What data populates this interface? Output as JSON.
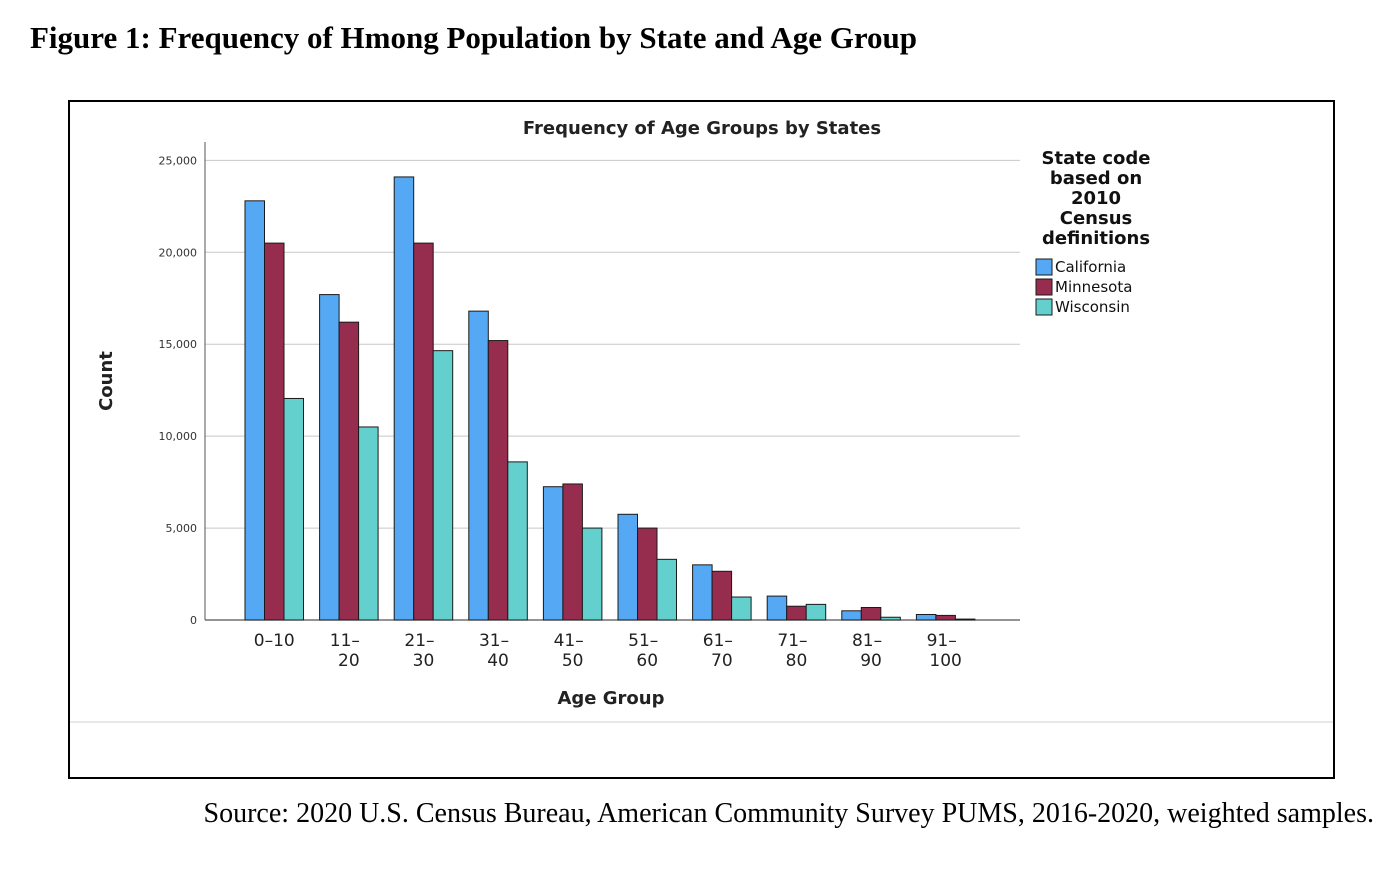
{
  "figure_title": "Figure 1: Frequency of Hmong Population by State and Age Group",
  "source_text": "Source: 2020 U.S. Census Bureau, American Community Survey PUMS, 2016-2020, weighted samples.",
  "chart_data": {
    "type": "bar",
    "title": "Frequency of Age Groups by States",
    "xlabel": "Age Group",
    "ylabel": "Count",
    "ylim": [
      0,
      26000
    ],
    "yticks": [
      0,
      5000,
      10000,
      15000,
      20000,
      25000
    ],
    "ytick_labels": [
      "0",
      "5,000",
      "10,000",
      "15,000",
      "20,000",
      "25,000"
    ],
    "grid": true,
    "categories": [
      "0–10",
      "11–20",
      "21–30",
      "31–40",
      "41–50",
      "51–60",
      "61–70",
      "71–80",
      "81–90",
      "91–100"
    ],
    "category_lines": [
      [
        "0–10"
      ],
      [
        "11–",
        "20"
      ],
      [
        "21–",
        "30"
      ],
      [
        "31–",
        "40"
      ],
      [
        "41–",
        "50"
      ],
      [
        "51–",
        "60"
      ],
      [
        "61–",
        "70"
      ],
      [
        "71–",
        "80"
      ],
      [
        "81–",
        "90"
      ],
      [
        "91–",
        "100"
      ]
    ],
    "legend_title_lines": [
      "State code",
      "based on",
      "2010",
      "Census",
      "definitions"
    ],
    "legend_position": "right",
    "series": [
      {
        "name": "California",
        "color": "#55a8f3",
        "values": [
          22800,
          17700,
          24100,
          16800,
          7250,
          5750,
          3000,
          1300,
          500,
          300
        ]
      },
      {
        "name": "Minnesota",
        "color": "#962d4f",
        "values": [
          20500,
          16200,
          20500,
          15200,
          7400,
          5000,
          2650,
          750,
          680,
          250
        ]
      },
      {
        "name": "Wisconsin",
        "color": "#64d0cd",
        "values": [
          12050,
          10500,
          14650,
          8600,
          5000,
          3300,
          1250,
          850,
          150,
          50
        ]
      }
    ]
  }
}
